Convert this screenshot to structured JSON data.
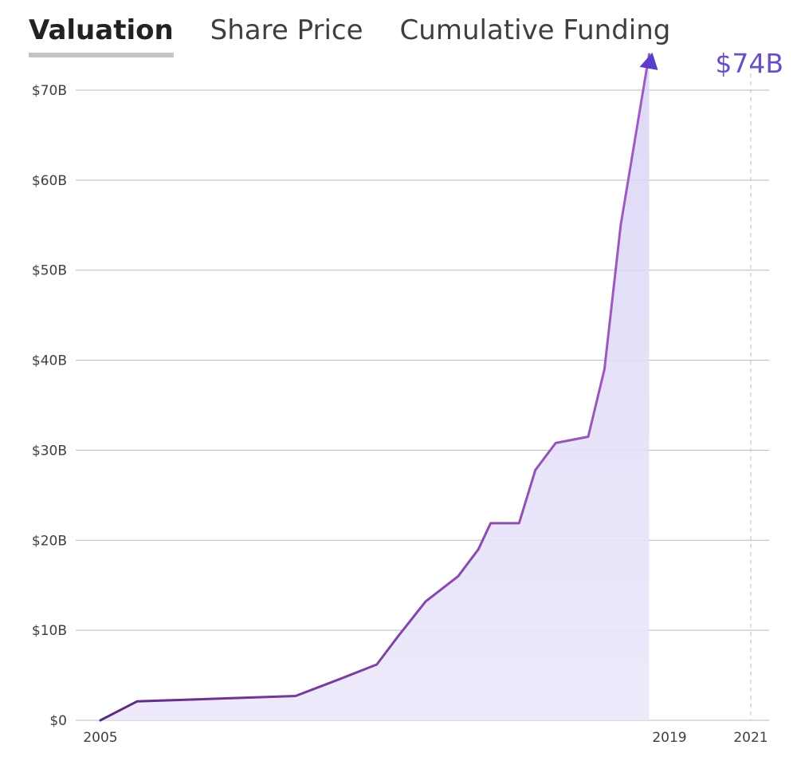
{
  "tabs": [
    {
      "label": "Valuation",
      "active": true
    },
    {
      "label": "Share Price",
      "active": false
    },
    {
      "label": "Cumulative Funding",
      "active": false
    }
  ],
  "chart_data": {
    "type": "area",
    "title": "Valuation",
    "ylim": [
      0,
      70
    ],
    "xlim": [
      2005,
      2021
    ],
    "y_ticks": [
      0,
      10,
      20,
      30,
      40,
      50,
      60,
      70
    ],
    "y_tick_labels": [
      "$0",
      "$10B",
      "$20B",
      "$30B",
      "$40B",
      "$50B",
      "$60B",
      "$70B"
    ],
    "x_tick_labels": [
      {
        "x": 2005,
        "label": "2005"
      },
      {
        "x": 2019,
        "label": "2019"
      },
      {
        "x": 2021,
        "label": "2021"
      }
    ],
    "series": [
      {
        "name": "Valuation",
        "x": [
          2005.0,
          2005.9,
          2009.8,
          2010.9,
          2011.8,
          2012.3,
          2013.0,
          2013.8,
          2014.3,
          2014.6,
          2015.3,
          2015.7,
          2016.2,
          2017.0,
          2017.4,
          2017.8,
          2018.5
        ],
        "values": [
          0.0,
          2.1,
          2.7,
          4.6,
          6.2,
          9.2,
          13.2,
          16.0,
          19.0,
          21.9,
          21.9,
          27.8,
          30.8,
          31.5,
          39.0,
          55.0,
          74.0
        ]
      }
    ],
    "peak_label": "$74B"
  }
}
